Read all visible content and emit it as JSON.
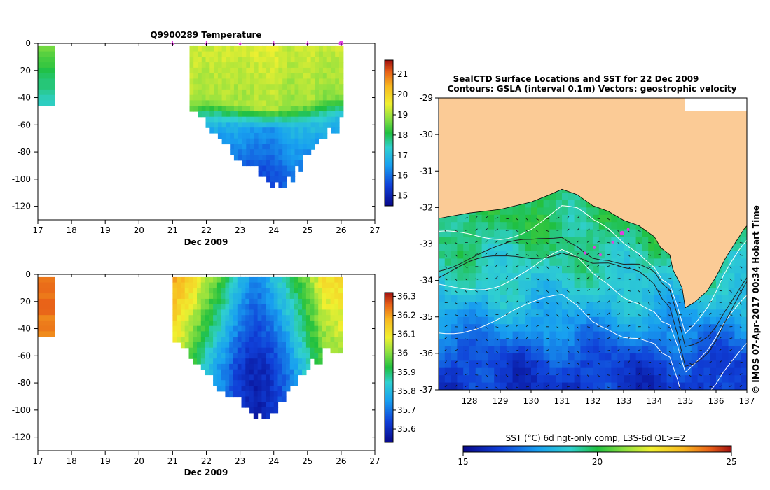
{
  "colors": {
    "land": "#fbcb96",
    "frame": "#000000",
    "marker": "#e040e0",
    "contour": "#ffffff"
  },
  "chart_data": [
    {
      "id": "temperature-section",
      "type": "heatmap",
      "title": "Q9900289  Temperature",
      "xlabel": "Dec 2009",
      "ylabel": "",
      "xlim": [
        17,
        27
      ],
      "ylim": [
        -130,
        0
      ],
      "xticks": [
        "17",
        "18",
        "19",
        "20",
        "21",
        "22",
        "23",
        "24",
        "25",
        "26",
        "27"
      ],
      "yticks": [
        "0",
        "-20",
        "-40",
        "-60",
        "-80",
        "-100",
        "-120"
      ],
      "profile_markers_days": [
        21,
        22,
        23,
        24,
        25
      ],
      "last_marker_day": 26,
      "colorbar": {
        "min": 14.5,
        "max": 21.7,
        "ticks": [
          "15",
          "16",
          "17",
          "18",
          "19",
          "20",
          "21"
        ]
      },
      "profiles": {
        "x": [
          17.0,
          21.5,
          22.0,
          22.5,
          23.0,
          23.5,
          24.0,
          24.5,
          25.0,
          25.5,
          26.0
        ],
        "max_depth": [
          46,
          47,
          60,
          74,
          89,
          94,
          107,
          103,
          85,
          72,
          60
        ],
        "thermocline_depth": [
          47,
          46,
          46,
          47,
          50,
          52,
          52,
          51,
          48,
          44,
          42
        ],
        "surface_value": [
          18.8,
          19.4,
          19.3,
          19.4,
          19.3,
          19.4,
          19.5,
          19.2,
          19.4,
          19.2,
          19.3
        ],
        "deep_value": [
          17.5,
          16.4,
          16.0,
          15.8,
          15.6,
          15.3,
          15.2,
          15.7,
          15.9,
          16.1,
          16.0
        ]
      }
    },
    {
      "id": "salinity-section",
      "type": "heatmap",
      "title": "",
      "xlabel": "Dec 2009",
      "ylabel": "",
      "xlim": [
        17,
        27
      ],
      "ylim": [
        -130,
        0
      ],
      "xticks": [
        "17",
        "18",
        "19",
        "20",
        "21",
        "22",
        "23",
        "24",
        "25",
        "26",
        "27"
      ],
      "yticks": [
        "0",
        "-20",
        "-40",
        "-60",
        "-80",
        "-100",
        "-120"
      ],
      "colorbar": {
        "min": 35.53,
        "max": 36.32,
        "ticks": [
          "35.6",
          "35.7",
          "35.8",
          "35.9",
          "36",
          "36.1",
          "36.2",
          "36.3"
        ]
      },
      "profiles": {
        "x": [
          17.0,
          21.0,
          21.5,
          22.0,
          22.5,
          23.0,
          23.5,
          24.0,
          24.5,
          25.0,
          25.5,
          26.0
        ],
        "max_depth": [
          46,
          47,
          60,
          76,
          90,
          94,
          107,
          104,
          86,
          72,
          60,
          58
        ],
        "surface_value": [
          36.25,
          36.2,
          36.15,
          36.05,
          35.95,
          35.8,
          35.72,
          35.82,
          35.9,
          36.0,
          36.12,
          36.12
        ],
        "deep_value": [
          36.2,
          36.05,
          35.95,
          35.82,
          35.72,
          35.62,
          35.58,
          35.62,
          35.72,
          35.85,
          35.95,
          36.02
        ]
      }
    },
    {
      "id": "sst-map",
      "type": "heatmap",
      "title": "SealCTD Surface Locations and SST for 22 Dec 2009",
      "subtitle": "Contours: GSLA (interval 0.1m) Vectors: geostrophic velocity",
      "xlim": [
        127,
        137
      ],
      "ylim": [
        -37,
        -29
      ],
      "xticks": [
        "128",
        "129",
        "130",
        "131",
        "132",
        "133",
        "134",
        "135",
        "136",
        "137"
      ],
      "yticks": [
        "-29",
        "-30",
        "-31",
        "-32",
        "-33",
        "-34",
        "-35",
        "-36",
        "-37"
      ],
      "coast_lon": [
        127.0,
        128.0,
        129.0,
        130.0,
        130.6,
        131.0,
        131.5,
        132.0,
        132.5,
        133.0,
        133.5,
        134.0,
        134.2,
        134.5,
        134.6,
        134.9,
        135.0,
        135.3,
        135.7,
        136.0,
        136.3,
        136.6,
        136.9,
        137.0
      ],
      "coast_lat": [
        -32.3,
        -32.15,
        -32.05,
        -31.85,
        -31.65,
        -31.5,
        -31.65,
        -31.95,
        -32.1,
        -32.35,
        -32.5,
        -32.8,
        -33.1,
        -33.3,
        -33.7,
        -34.2,
        -34.75,
        -34.6,
        -34.3,
        -33.9,
        -33.4,
        -33.0,
        -32.6,
        -32.5
      ],
      "seal_locations": [
        {
          "lon": 132.95,
          "lat": -32.7
        },
        {
          "lon": 133.15,
          "lat": -32.6
        },
        {
          "lon": 132.65,
          "lat": -32.95
        },
        {
          "lon": 132.05,
          "lat": -33.1
        },
        {
          "lon": 131.75,
          "lat": -33.25
        },
        {
          "lon": 132.25,
          "lat": -33.3
        }
      ],
      "sst_by_latitude": [
        {
          "lat": -32.2,
          "sst": 19.8
        },
        {
          "lat": -33.0,
          "sst": 19.5
        },
        {
          "lat": -34.0,
          "sst": 18.9
        },
        {
          "lat": -34.8,
          "sst": 18.2
        },
        {
          "lat": -35.5,
          "sst": 17.4
        },
        {
          "lat": -36.2,
          "sst": 16.5
        },
        {
          "lat": -37.0,
          "sst": 16.1
        }
      ],
      "colorbar": {
        "label": "SST (°C) 6d ngt-only comp, L3S-6d QL>=2",
        "min": 15,
        "max": 25,
        "ticks": [
          "15",
          "20",
          "25"
        ]
      },
      "credit": "© IMOS 07-Apr-2017 00:34 Hobart Time"
    }
  ]
}
